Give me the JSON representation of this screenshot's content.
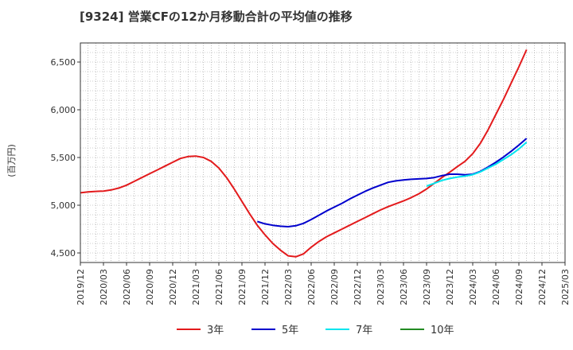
{
  "chart_data": {
    "type": "line",
    "title": "[9324]  営業CFの12か月移動合計の平均値の推移",
    "ylabel": "(百万円)",
    "xlabel": "",
    "ylim": [
      4400,
      6700
    ],
    "yticks": [
      4500,
      5000,
      5500,
      6000,
      6500
    ],
    "ytick_labels": [
      "4,500",
      "5,000",
      "5,500",
      "6,000",
      "6,500"
    ],
    "xlim": [
      "2019-12",
      "2025-03"
    ],
    "xtick_labels": [
      "2019/12",
      "2020/03",
      "2020/06",
      "2020/09",
      "2020/12",
      "2021/03",
      "2021/06",
      "2021/09",
      "2021/12",
      "2022/03",
      "2022/06",
      "2022/09",
      "2022/12",
      "2023/03",
      "2023/06",
      "2023/09",
      "2023/12",
      "2024/03",
      "2024/06",
      "2024/09",
      "2024/12",
      "2025/03"
    ],
    "grid": true,
    "legend_position": "bottom",
    "series": [
      {
        "name": "3年",
        "color": "#e31a1c",
        "points": [
          [
            "2019-12",
            5130
          ],
          [
            "2020-01",
            5140
          ],
          [
            "2020-02",
            5145
          ],
          [
            "2020-03",
            5148
          ],
          [
            "2020-04",
            5160
          ],
          [
            "2020-05",
            5180
          ],
          [
            "2020-06",
            5210
          ],
          [
            "2020-07",
            5250
          ],
          [
            "2020-08",
            5290
          ],
          [
            "2020-09",
            5330
          ],
          [
            "2020-10",
            5370
          ],
          [
            "2020-11",
            5410
          ],
          [
            "2020-12",
            5450
          ],
          [
            "2021-01",
            5490
          ],
          [
            "2021-02",
            5510
          ],
          [
            "2021-03",
            5515
          ],
          [
            "2021-04",
            5500
          ],
          [
            "2021-05",
            5460
          ],
          [
            "2021-06",
            5390
          ],
          [
            "2021-07",
            5290
          ],
          [
            "2021-08",
            5170
          ],
          [
            "2021-09",
            5040
          ],
          [
            "2021-10",
            4910
          ],
          [
            "2021-11",
            4790
          ],
          [
            "2021-12",
            4690
          ],
          [
            "2022-01",
            4600
          ],
          [
            "2022-02",
            4530
          ],
          [
            "2022-03",
            4470
          ],
          [
            "2022-04",
            4460
          ],
          [
            "2022-05",
            4490
          ],
          [
            "2022-06",
            4560
          ],
          [
            "2022-07",
            4620
          ],
          [
            "2022-08",
            4670
          ],
          [
            "2022-09",
            4710
          ],
          [
            "2022-10",
            4750
          ],
          [
            "2022-11",
            4790
          ],
          [
            "2022-12",
            4830
          ],
          [
            "2023-01",
            4870
          ],
          [
            "2023-02",
            4910
          ],
          [
            "2023-03",
            4950
          ],
          [
            "2023-04",
            4985
          ],
          [
            "2023-05",
            5015
          ],
          [
            "2023-06",
            5045
          ],
          [
            "2023-07",
            5080
          ],
          [
            "2023-08",
            5120
          ],
          [
            "2023-09",
            5170
          ],
          [
            "2023-10",
            5230
          ],
          [
            "2023-11",
            5290
          ],
          [
            "2023-12",
            5345
          ],
          [
            "2024-01",
            5405
          ],
          [
            "2024-02",
            5460
          ],
          [
            "2024-03",
            5540
          ],
          [
            "2024-04",
            5650
          ],
          [
            "2024-05",
            5790
          ],
          [
            "2024-06",
            5950
          ],
          [
            "2024-07",
            6110
          ],
          [
            "2024-08",
            6280
          ],
          [
            "2024-09",
            6450
          ],
          [
            "2024-10",
            6630
          ]
        ]
      },
      {
        "name": "5年",
        "color": "#0000cd",
        "points": [
          [
            "2021-11",
            4830
          ],
          [
            "2021-12",
            4805
          ],
          [
            "2022-01",
            4790
          ],
          [
            "2022-02",
            4780
          ],
          [
            "2022-03",
            4775
          ],
          [
            "2022-04",
            4785
          ],
          [
            "2022-05",
            4810
          ],
          [
            "2022-06",
            4850
          ],
          [
            "2022-07",
            4895
          ],
          [
            "2022-08",
            4940
          ],
          [
            "2022-09",
            4980
          ],
          [
            "2022-10",
            5020
          ],
          [
            "2022-11",
            5065
          ],
          [
            "2022-12",
            5105
          ],
          [
            "2023-01",
            5145
          ],
          [
            "2023-02",
            5180
          ],
          [
            "2023-03",
            5210
          ],
          [
            "2023-04",
            5240
          ],
          [
            "2023-05",
            5255
          ],
          [
            "2023-06",
            5265
          ],
          [
            "2023-07",
            5272
          ],
          [
            "2023-08",
            5276
          ],
          [
            "2023-09",
            5280
          ],
          [
            "2023-10",
            5290
          ],
          [
            "2023-11",
            5310
          ],
          [
            "2023-12",
            5325
          ],
          [
            "2024-01",
            5325
          ],
          [
            "2024-02",
            5318
          ],
          [
            "2024-03",
            5325
          ],
          [
            "2024-04",
            5355
          ],
          [
            "2024-05",
            5400
          ],
          [
            "2024-06",
            5450
          ],
          [
            "2024-07",
            5505
          ],
          [
            "2024-08",
            5565
          ],
          [
            "2024-09",
            5630
          ],
          [
            "2024-10",
            5700
          ]
        ]
      },
      {
        "name": "7年",
        "color": "#00e5ee",
        "points": [
          [
            "2023-09",
            5200
          ],
          [
            "2023-10",
            5230
          ],
          [
            "2023-11",
            5260
          ],
          [
            "2023-12",
            5280
          ],
          [
            "2024-01",
            5295
          ],
          [
            "2024-02",
            5305
          ],
          [
            "2024-03",
            5320
          ],
          [
            "2024-04",
            5350
          ],
          [
            "2024-05",
            5390
          ],
          [
            "2024-06",
            5430
          ],
          [
            "2024-07",
            5480
          ],
          [
            "2024-08",
            5530
          ],
          [
            "2024-09",
            5590
          ],
          [
            "2024-10",
            5660
          ]
        ]
      },
      {
        "name": "10年",
        "color": "#228b22",
        "points": []
      }
    ]
  }
}
